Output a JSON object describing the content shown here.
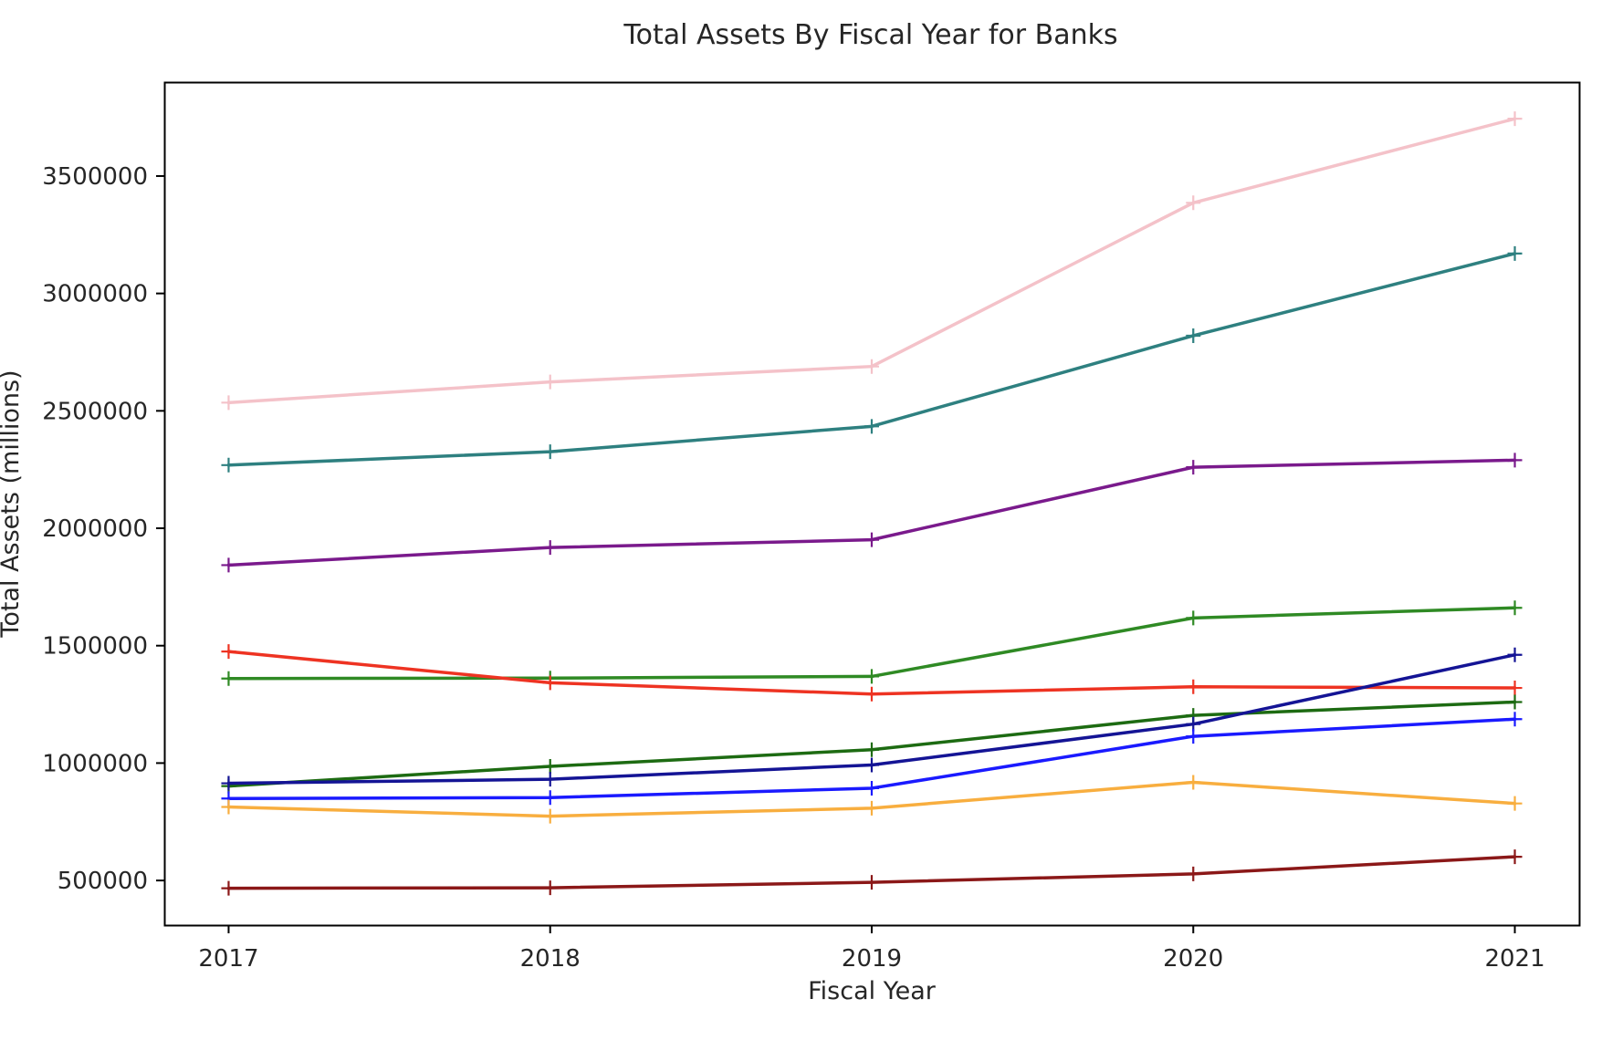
{
  "chart_data": {
    "type": "line",
    "title": "Total Assets By Fiscal Year for Banks",
    "xlabel": "Fiscal Year",
    "ylabel": "Total Assets (millions)",
    "x": [
      "2017",
      "2018",
      "2019",
      "2020",
      "2021"
    ],
    "xlim": [
      2016.8,
      2021.2
    ],
    "ylim": [
      310000,
      3900000
    ],
    "y_ticks": [
      500000,
      1000000,
      1500000,
      2000000,
      2500000,
      3000000,
      3500000
    ],
    "grid": false,
    "marker": "plus",
    "series": [
      {
        "color": "#f4c2c9",
        "values": [
          2535000,
          2623000,
          2689000,
          3386000,
          3744000
        ]
      },
      {
        "color": "#2e8080",
        "values": [
          2269000,
          2326000,
          2434000,
          2820000,
          3170000
        ]
      },
      {
        "color": "#7a1a8c",
        "values": [
          1843000,
          1918000,
          1951000,
          2260000,
          2290000
        ]
      },
      {
        "color": "#2f8a24",
        "values": [
          1360000,
          1362000,
          1369000,
          1618000,
          1661000
        ]
      },
      {
        "color": "#ee3322",
        "values": [
          1475000,
          1342000,
          1294000,
          1325000,
          1320000
        ]
      },
      {
        "color": "#1d6b12",
        "values": [
          902000,
          986000,
          1057000,
          1203000,
          1260000
        ]
      },
      {
        "color": "#141495",
        "values": [
          914000,
          931000,
          992000,
          1166000,
          1461000
        ]
      },
      {
        "color": "#1a1aff",
        "values": [
          849000,
          853000,
          893000,
          1114000,
          1187000
        ]
      },
      {
        "color": "#f8ae3f",
        "values": [
          813000,
          774000,
          808000,
          918000,
          828000
        ]
      },
      {
        "color": "#8b1818",
        "values": [
          467000,
          469000,
          492000,
          528000,
          601000
        ]
      }
    ]
  }
}
